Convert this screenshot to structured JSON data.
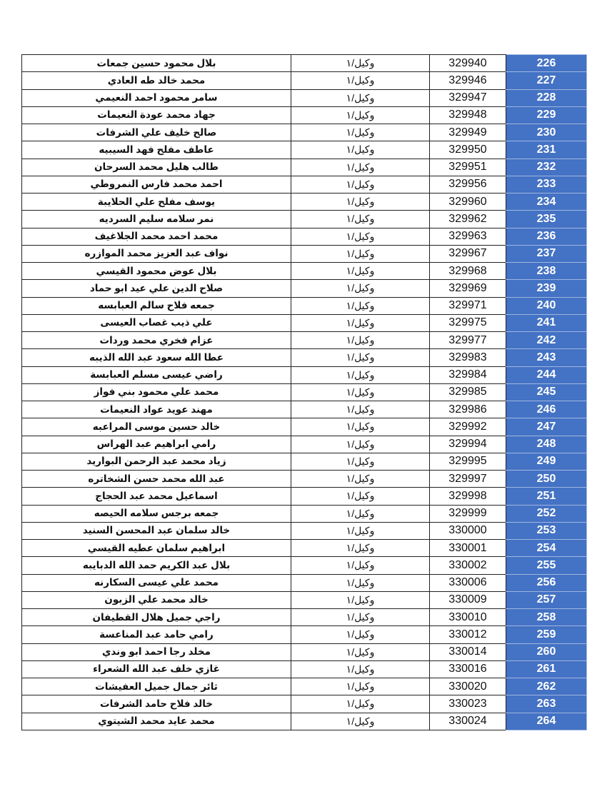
{
  "accent_color": "#4472c4",
  "rows": [
    {
      "idx": "226",
      "num": "329940",
      "rank": "وكيل/١",
      "name": "بلال محمود حسين جمعات"
    },
    {
      "idx": "227",
      "num": "329946",
      "rank": "وكيل/١",
      "name": "محمد خالد طه العادي"
    },
    {
      "idx": "228",
      "num": "329947",
      "rank": "وكيل/١",
      "name": "سامر محمود احمد النعيمي"
    },
    {
      "idx": "229",
      "num": "329948",
      "rank": "وكيل/١",
      "name": "جهاد محمد عودة النعيمات"
    },
    {
      "idx": "230",
      "num": "329949",
      "rank": "وكيل/١",
      "name": "صالح خليف علي الشرفات"
    },
    {
      "idx": "231",
      "num": "329950",
      "rank": "وكيل/١",
      "name": "عاطف مفلح فهد السيبيه"
    },
    {
      "idx": "232",
      "num": "329951",
      "rank": "وكيل/١",
      "name": "طالب هليل محمد السرحان"
    },
    {
      "idx": "233",
      "num": "329956",
      "rank": "وكيل/١",
      "name": "احمد محمد فارس النمروطي"
    },
    {
      "idx": "234",
      "num": "329960",
      "rank": "وكيل/١",
      "name": "يوسف مفلح علي الحلايبة"
    },
    {
      "idx": "235",
      "num": "329962",
      "rank": "وكيل/١",
      "name": "نمر سلامه سليم السرديه"
    },
    {
      "idx": "236",
      "num": "329963",
      "rank": "وكيل/١",
      "name": "محمد احمد محمد الجلاغيف"
    },
    {
      "idx": "237",
      "num": "329967",
      "rank": "وكيل/١",
      "name": "نواف عبد العزيز محمد الموازره"
    },
    {
      "idx": "238",
      "num": "329968",
      "rank": "وكيل/١",
      "name": "بلال عوض محمود القيسي"
    },
    {
      "idx": "239",
      "num": "329969",
      "rank": "وكيل/١",
      "name": "صلاح الدين علي عيد ابو حماد"
    },
    {
      "idx": "240",
      "num": "329971",
      "rank": "وكيل/١",
      "name": "جمعه فلاح سالم العبابسه"
    },
    {
      "idx": "241",
      "num": "329975",
      "rank": "وكيل/١",
      "name": "علي ذيب غصاب العيسى"
    },
    {
      "idx": "242",
      "num": "329977",
      "rank": "وكيل/١",
      "name": "عزام فخري محمد وردات"
    },
    {
      "idx": "243",
      "num": "329983",
      "rank": "وكيل/١",
      "name": "عطا الله سعود عبد الله الذيبه"
    },
    {
      "idx": "244",
      "num": "329984",
      "rank": "وكيل/١",
      "name": "راضي عيسى مسلم العبابسة"
    },
    {
      "idx": "245",
      "num": "329985",
      "rank": "وكيل/١",
      "name": "محمد علي محمود بني فواز"
    },
    {
      "idx": "246",
      "num": "329986",
      "rank": "وكيل/١",
      "name": "مهند عويد عواد النعيمات"
    },
    {
      "idx": "247",
      "num": "329992",
      "rank": "وكيل/١",
      "name": "خالد حسين موسى المراعبه"
    },
    {
      "idx": "248",
      "num": "329994",
      "rank": "وكيل/١",
      "name": "رامي  ابراهيم عبد الهراس"
    },
    {
      "idx": "249",
      "num": "329995",
      "rank": "وكيل/١",
      "name": "زياد محمد عبد الرحمن البواريد"
    },
    {
      "idx": "250",
      "num": "329997",
      "rank": "وكيل/١",
      "name": "عبد الله محمد حسن الشخاتره"
    },
    {
      "idx": "251",
      "num": "329998",
      "rank": "وكيل/١",
      "name": "اسماعيل محمد عبد الحجاج"
    },
    {
      "idx": "252",
      "num": "329999",
      "rank": "وكيل/١",
      "name": "جمعه برجس سلامه الحيصه"
    },
    {
      "idx": "253",
      "num": "330000",
      "rank": "وكيل/١",
      "name": "خالد سلمان عبد المحسن السنيد"
    },
    {
      "idx": "254",
      "num": "330001",
      "rank": "وكيل/١",
      "name": "ابراهيم سلمان عطيه القيسي"
    },
    {
      "idx": "255",
      "num": "330002",
      "rank": "وكيل/١",
      "name": "بلال عبد الكريم حمد الله الدبايبه"
    },
    {
      "idx": "256",
      "num": "330006",
      "rank": "وكيل/١",
      "name": "محمد علي عيسى السكارنه"
    },
    {
      "idx": "257",
      "num": "330009",
      "rank": "وكيل/١",
      "name": "خالد محمد علي الزبون"
    },
    {
      "idx": "258",
      "num": "330010",
      "rank": "وكيل/١",
      "name": "راجي جميل هلال القطيفان"
    },
    {
      "idx": "259",
      "num": "330012",
      "rank": "وكيل/١",
      "name": "رامي حامد عبد المناعسة"
    },
    {
      "idx": "260",
      "num": "330014",
      "rank": "وكيل/١",
      "name": "مخلد رجا احمد ابو وندي"
    },
    {
      "idx": "261",
      "num": "330016",
      "rank": "وكيل/١",
      "name": "غازي خلف عبد الله  الشعراء"
    },
    {
      "idx": "262",
      "num": "330020",
      "rank": "وكيل/١",
      "name": "ثائر جمال جميل العفيشات"
    },
    {
      "idx": "263",
      "num": "330023",
      "rank": "وكيل/١",
      "name": "خالد فلاح حامد الشرفات"
    },
    {
      "idx": "264",
      "num": "330024",
      "rank": "وكيل/١",
      "name": "محمد عايد محمد الشيتوي"
    }
  ]
}
